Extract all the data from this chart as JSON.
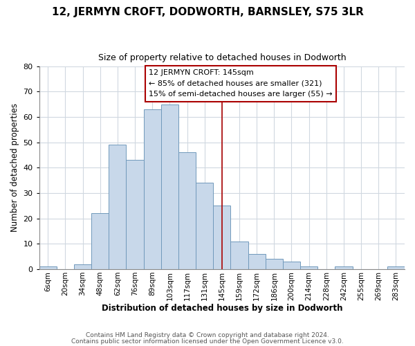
{
  "title": "12, JERMYN CROFT, DODWORTH, BARNSLEY, S75 3LR",
  "subtitle": "Size of property relative to detached houses in Dodworth",
  "xlabel": "Distribution of detached houses by size in Dodworth",
  "ylabel": "Number of detached properties",
  "bar_labels": [
    "6sqm",
    "20sqm",
    "34sqm",
    "48sqm",
    "62sqm",
    "76sqm",
    "89sqm",
    "103sqm",
    "117sqm",
    "131sqm",
    "145sqm",
    "159sqm",
    "172sqm",
    "186sqm",
    "200sqm",
    "214sqm",
    "228sqm",
    "242sqm",
    "255sqm",
    "269sqm",
    "283sqm"
  ],
  "bar_values": [
    1,
    0,
    2,
    22,
    49,
    43,
    63,
    65,
    46,
    34,
    25,
    11,
    6,
    4,
    3,
    1,
    0,
    1,
    0,
    0,
    1
  ],
  "bar_color": "#c8d8ea",
  "bar_edgecolor": "#7099bb",
  "vline_x": 10,
  "vline_color": "#aa0000",
  "legend_title": "12 JERMYN CROFT: 145sqm",
  "legend_line1": "← 85% of detached houses are smaller (321)",
  "legend_line2": "15% of semi-detached houses are larger (55) →",
  "legend_box_color": "#aa0000",
  "ylim": [
    0,
    80
  ],
  "yticks": [
    0,
    10,
    20,
    30,
    40,
    50,
    60,
    70,
    80
  ],
  "footer1": "Contains HM Land Registry data © Crown copyright and database right 2024.",
  "footer2": "Contains public sector information licensed under the Open Government Licence v3.0.",
  "background_color": "#ffffff",
  "grid_color": "#d0d8e0"
}
